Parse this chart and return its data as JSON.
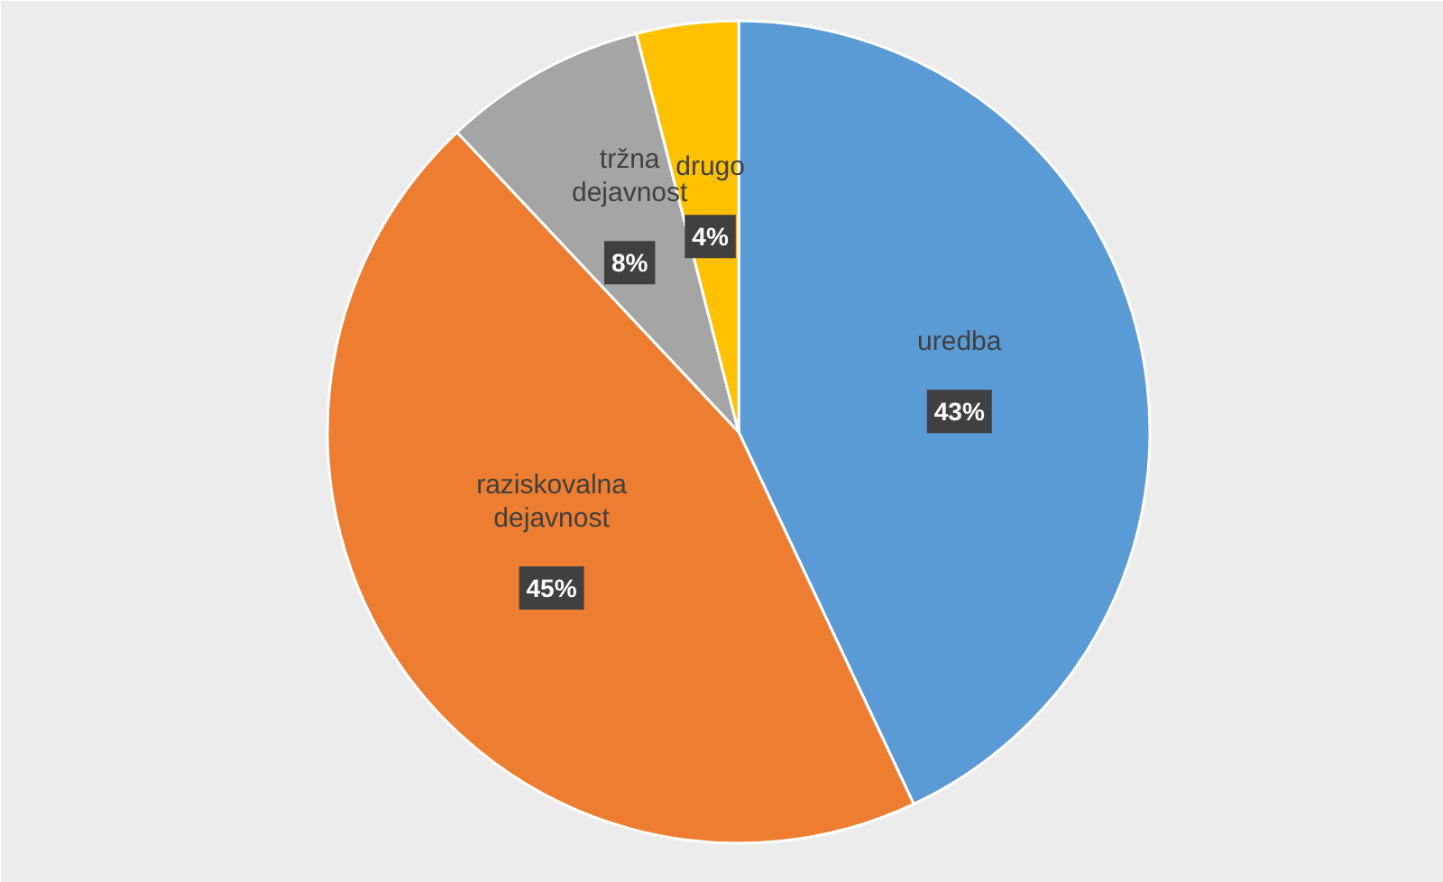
{
  "chart_data": {
    "type": "pie",
    "categories": [
      "uredba",
      "raziskovalna dejavnost",
      "tržna dejavnost",
      "drugo"
    ],
    "values": [
      43,
      45,
      8,
      4
    ],
    "colors": [
      "#5b9bd5",
      "#ed7d31",
      "#a5a5a5",
      "#ffc000"
    ],
    "value_labels": [
      "43%",
      "45%",
      "8%",
      "4%"
    ]
  }
}
